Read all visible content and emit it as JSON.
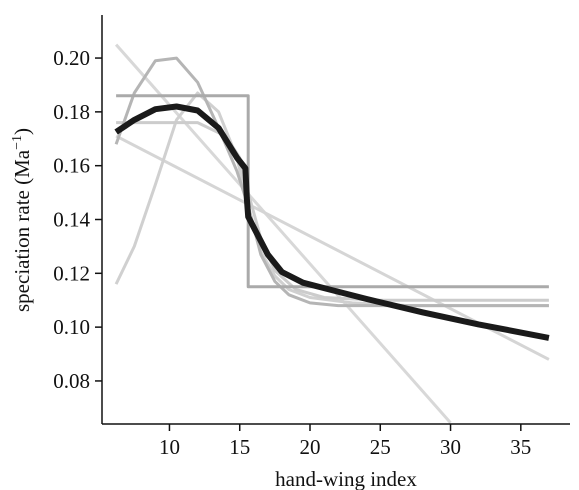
{
  "chart_data": {
    "type": "line",
    "xlabel": "hand-wing index",
    "ylabel": "speciation rate (Ma",
    "ylabel_sup": "−1",
    "ylabel_close": ")",
    "xlim": [
      5.2,
      38.5
    ],
    "ylim": [
      0.064,
      0.216
    ],
    "xticks": [
      10,
      15,
      20,
      25,
      30,
      35
    ],
    "yticks": [
      0.08,
      0.1,
      0.12,
      0.14,
      0.16,
      0.18,
      0.2
    ],
    "xtick_labels": [
      "10",
      "15",
      "20",
      "25",
      "30",
      "35"
    ],
    "ytick_labels": [
      "0.08",
      "0.10",
      "0.12",
      "0.14",
      "0.16",
      "0.18",
      "0.20"
    ],
    "grid": false,
    "legend": "none",
    "series": [
      {
        "style": "steep-linear",
        "color": "#d8d8d8",
        "width": 3,
        "x": [
          6.2,
          30.0
        ],
        "y": [
          0.205,
          0.0645
        ]
      },
      {
        "style": "linear",
        "color": "#d5d5d5",
        "width": 3,
        "x": [
          6.2,
          37.0
        ],
        "y": [
          0.171,
          0.088
        ]
      },
      {
        "style": "low-start-curve",
        "color": "#d0d0d0",
        "width": 3,
        "x": [
          6.2,
          7.5,
          9.0,
          10.5,
          12.0,
          13.5,
          14.8,
          15.6,
          16.5,
          17.5,
          18.5,
          20.0,
          23.0,
          27.0,
          32.0,
          37.0
        ],
        "y": [
          0.116,
          0.13,
          0.153,
          0.177,
          0.187,
          0.18,
          0.163,
          0.145,
          0.128,
          0.119,
          0.114,
          0.111,
          0.109,
          0.108,
          0.108,
          0.108
        ]
      },
      {
        "style": "flat-step",
        "color": "#cccccc",
        "width": 3,
        "x": [
          6.2,
          9.0,
          12.0,
          14.0,
          15.0,
          15.6,
          16.5,
          17.5,
          19.0,
          21.0,
          25.0,
          30.0,
          37.0
        ],
        "y": [
          0.176,
          0.176,
          0.176,
          0.171,
          0.163,
          0.15,
          0.133,
          0.121,
          0.114,
          0.111,
          0.11,
          0.11,
          0.11
        ]
      },
      {
        "style": "hump",
        "color": "#b5b5b5",
        "width": 3,
        "x": [
          6.2,
          7.5,
          9.0,
          10.5,
          12.0,
          13.5,
          14.8,
          15.6,
          16.5,
          17.5,
          18.5,
          20.0,
          22.0,
          25.0,
          30.0,
          37.0
        ],
        "y": [
          0.168,
          0.187,
          0.199,
          0.2,
          0.191,
          0.174,
          0.158,
          0.145,
          0.127,
          0.117,
          0.112,
          0.109,
          0.108,
          0.108,
          0.108,
          0.108
        ]
      },
      {
        "style": "step",
        "color": "#aaaaaa",
        "width": 3,
        "x": [
          6.2,
          15.6,
          15.6,
          37.0
        ],
        "y": [
          0.186,
          0.186,
          0.115,
          0.115
        ]
      },
      {
        "style": "consensus",
        "color": "#1a1a1a",
        "width": 6,
        "x": [
          6.2,
          7.5,
          9.0,
          10.5,
          12.0,
          13.5,
          14.8,
          15.4,
          15.5,
          15.6,
          16.3,
          17.0,
          18.0,
          19.5,
          21.0,
          24.0,
          28.0,
          32.0,
          37.0
        ],
        "y": [
          0.1725,
          0.177,
          0.181,
          0.182,
          0.1805,
          0.174,
          0.163,
          0.159,
          0.148,
          0.141,
          0.134,
          0.127,
          0.1205,
          0.1165,
          0.1145,
          0.1105,
          0.1055,
          0.101,
          0.096
        ]
      }
    ]
  }
}
